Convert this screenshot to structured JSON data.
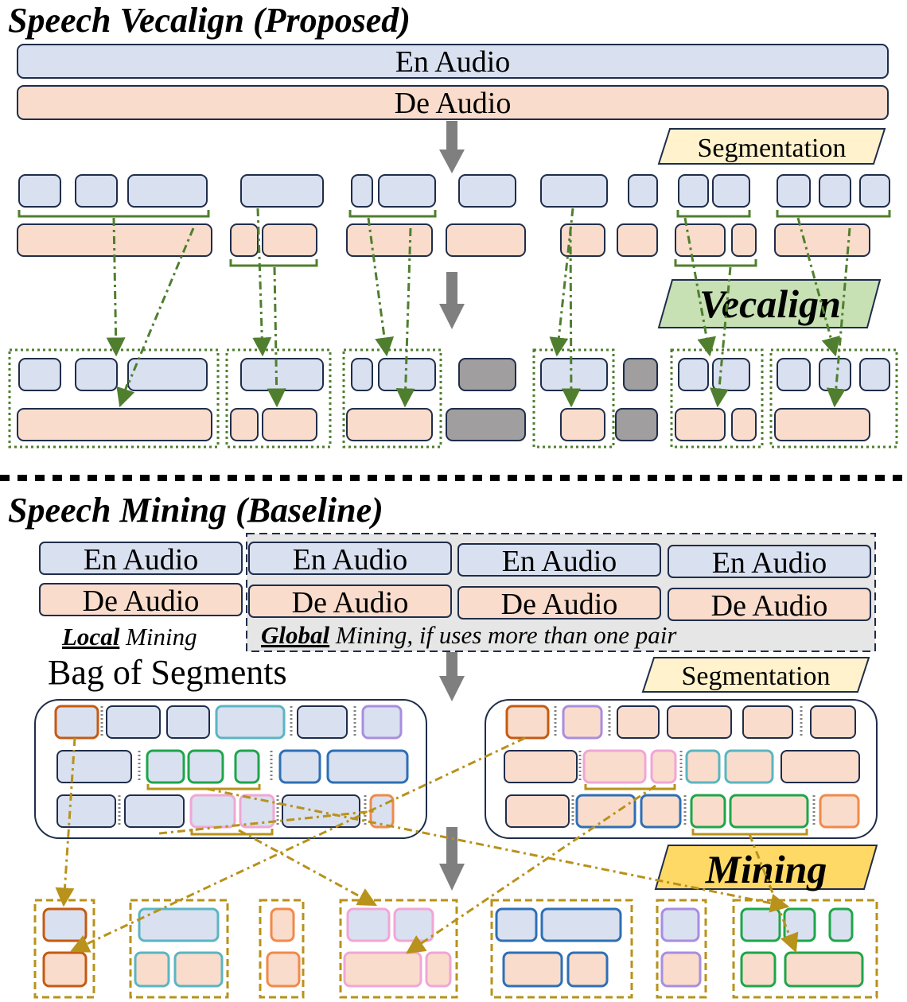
{
  "top_section": {
    "title": "Speech Vecalign (Proposed)",
    "en_audio": "En Audio",
    "de_audio": "De Audio",
    "segmentation_tag": "Segmentation",
    "method_tag": "Vecalign"
  },
  "bottom_section": {
    "title": "Speech Mining (Baseline)",
    "en_audio": "En Audio",
    "de_audio": "De Audio",
    "local_keyword": "Local",
    "local_rest": " Mining",
    "global_keyword": "Global",
    "global_rest": " Mining, if uses more than one pair",
    "bag_label": "Bag of Segments",
    "segmentation_tag": "Segmentation",
    "method_tag": "Mining"
  },
  "colors": {
    "en_fill": "#d9e0f0",
    "de_fill": "#f9dccb",
    "gray_fill": "#a09e9e",
    "green_line": "#4f7f2e",
    "gold_line": "#b8921a",
    "vecalign_tag": "#c7e0b4",
    "mining_tag": "#ffd966",
    "segmentation_tag": "#fff2cc",
    "orange": "#c55a11",
    "teal": "#5ab5c2",
    "purple": "#a98de0",
    "green": "#1ea64a",
    "pink": "#f0a6d6",
    "blue": "#2e6fb5",
    "light_orange": "#f08a4b"
  }
}
